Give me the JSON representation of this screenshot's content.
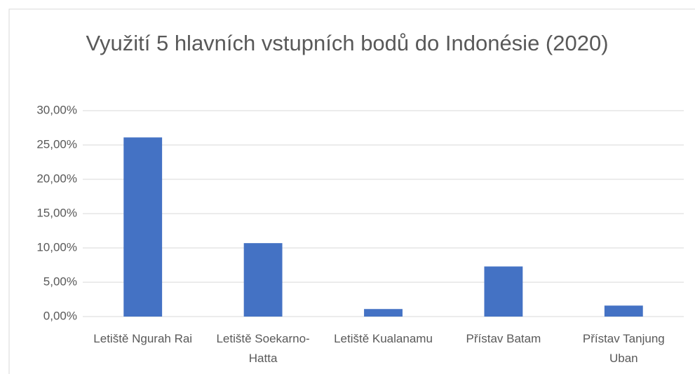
{
  "chart_data": {
    "type": "bar",
    "title": "Využití 5 hlavních vstupních bodů do Indonésie (2020)",
    "categories": [
      "Letiště Ngurah Rai",
      "Letiště Soekarno-Hatta",
      "Letiště Kualanamu",
      "Přístav Batam",
      "Přístav Tanjung Uban"
    ],
    "values": [
      26.1,
      10.7,
      1.1,
      7.3,
      1.6
    ],
    "color": "#4472c4",
    "ylim": [
      0,
      30
    ],
    "yticks": [
      {
        "value": 0,
        "label": "0,00%"
      },
      {
        "value": 5,
        "label": "5,00%"
      },
      {
        "value": 10,
        "label": "10,00%"
      },
      {
        "value": 15,
        "label": "15,00%"
      },
      {
        "value": 20,
        "label": "20,00%"
      },
      {
        "value": 25,
        "label": "25,00%"
      },
      {
        "value": 30,
        "label": "30,00%"
      }
    ],
    "grid": true
  }
}
